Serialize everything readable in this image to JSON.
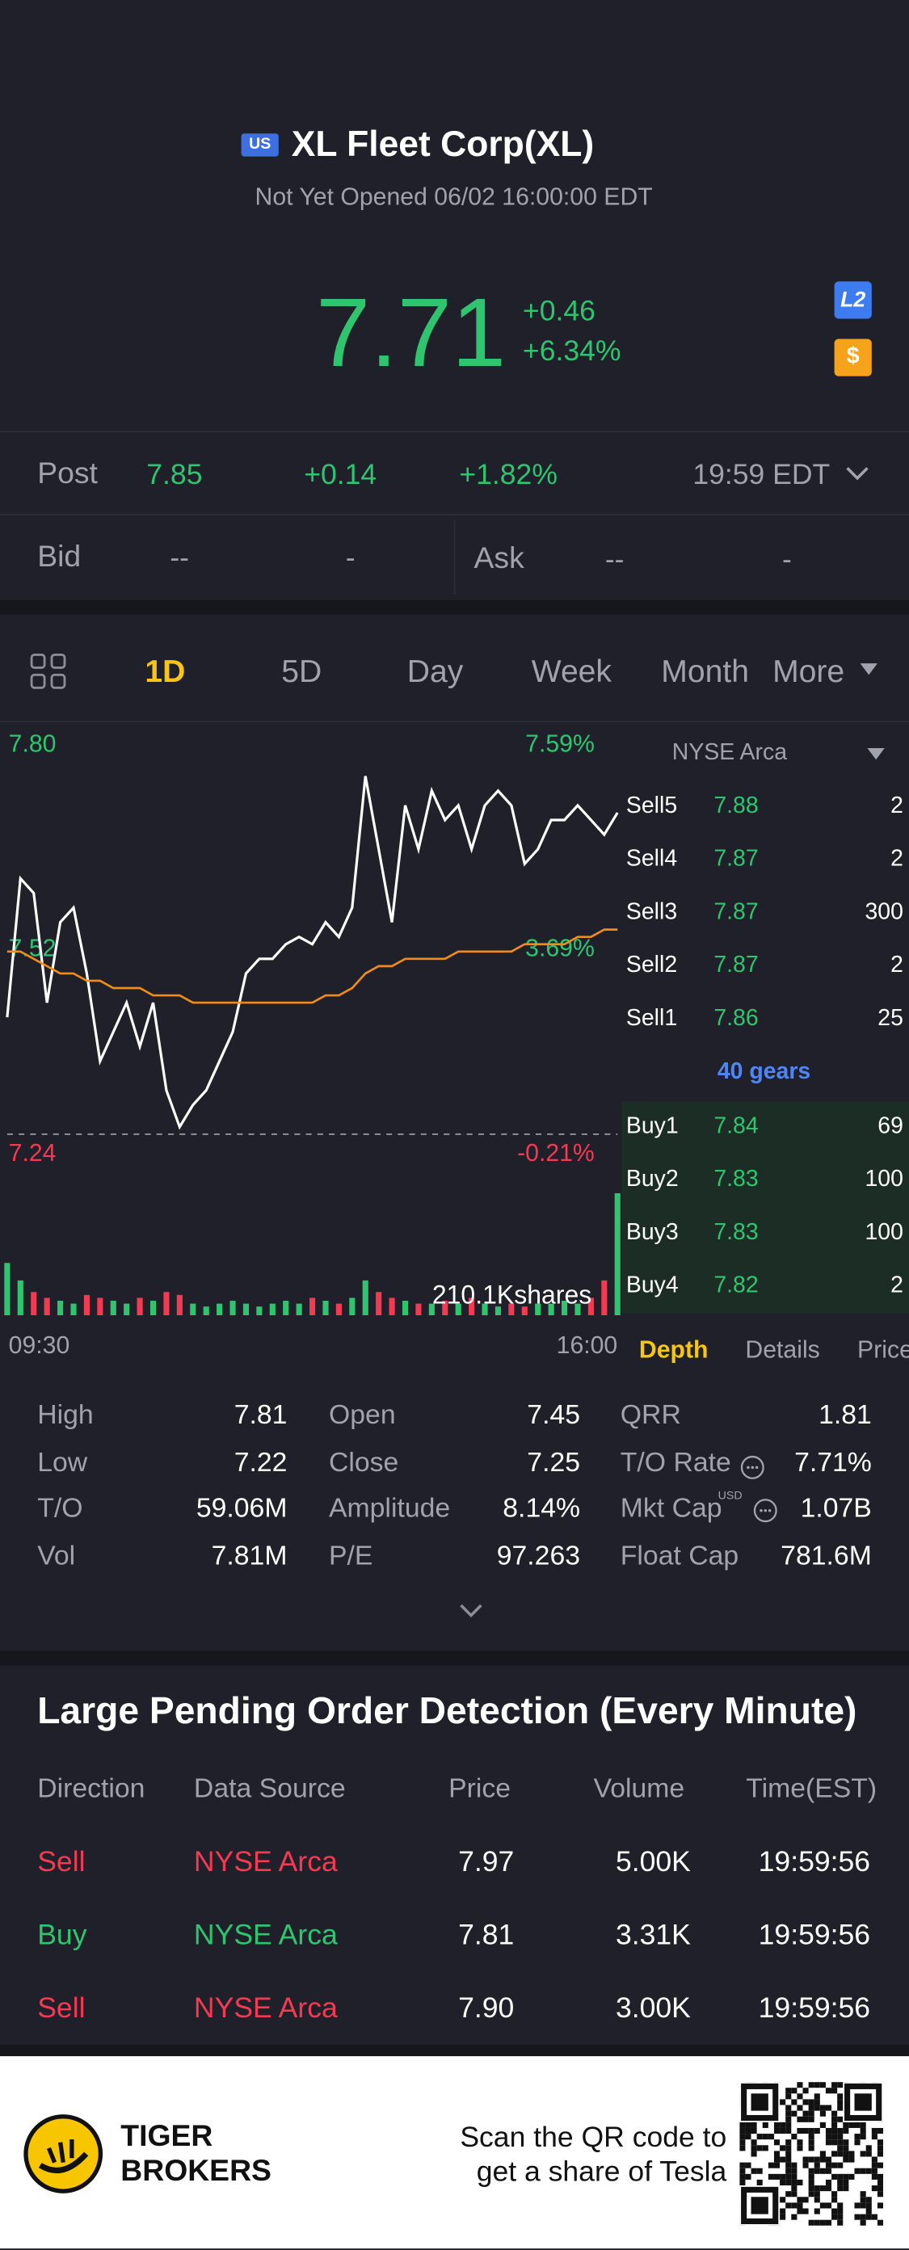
{
  "header": {
    "badge": "US",
    "title": "XL Fleet Corp(XL)",
    "status": "Not Yet Opened 06/02 16:00:00 EDT"
  },
  "quote": {
    "price": "7.71",
    "change": "+0.46",
    "change_pct": "+6.34%",
    "icons": [
      "L2",
      "$"
    ]
  },
  "post": {
    "label": "Post",
    "price": "7.85",
    "change": "+0.14",
    "change_pct": "+1.82%",
    "time": "19:59 EDT"
  },
  "bid_ask": {
    "bid_label": "Bid",
    "bid": "--",
    "bid_size": "-",
    "ask_label": "Ask",
    "ask": "--",
    "ask_size": "-"
  },
  "tabs": [
    "1D",
    "5D",
    "Day",
    "Week",
    "Month",
    "More"
  ],
  "chart_data": {
    "type": "line",
    "ylim": [
      7.24,
      7.8
    ],
    "yticks": [
      {
        "value": 7.8,
        "label": "7.80"
      },
      7.52,
      7.24
    ],
    "y2lim": [
      -0.21,
      7.59
    ],
    "y2ticks": [
      {
        "value": 7.59,
        "label": "7.59%"
      },
      {
        "value": 3.69,
        "label": "3.69%"
      },
      {
        "value": -0.21,
        "label": "-0.21%"
      }
    ],
    "prev_close": 7.25,
    "xlabels": [
      "09:30",
      "16:00"
    ],
    "series": [
      {
        "color": "#ffffff",
        "values": [
          7.41,
          7.6,
          7.58,
          7.43,
          7.54,
          7.56,
          7.47,
          7.35,
          7.39,
          7.43,
          7.37,
          7.43,
          7.31,
          7.26,
          7.29,
          7.31,
          7.35,
          7.39,
          7.47,
          7.49,
          7.49,
          7.51,
          7.52,
          7.51,
          7.54,
          7.52,
          7.56,
          7.74,
          7.64,
          7.54,
          7.7,
          7.64,
          7.72,
          7.68,
          7.7,
          7.64,
          7.7,
          7.72,
          7.7,
          7.62,
          7.64,
          7.68,
          7.68,
          7.7,
          7.68,
          7.66,
          7.69
        ]
      },
      {
        "color": "#f08c1a",
        "values": [
          7.5,
          7.5,
          7.49,
          7.48,
          7.47,
          7.47,
          7.46,
          7.46,
          7.45,
          7.45,
          7.45,
          7.44,
          7.44,
          7.44,
          7.43,
          7.43,
          7.43,
          7.43,
          7.43,
          7.43,
          7.43,
          7.43,
          7.43,
          7.43,
          7.44,
          7.44,
          7.45,
          7.47,
          7.48,
          7.48,
          7.49,
          7.49,
          7.49,
          7.49,
          7.5,
          7.5,
          7.5,
          7.5,
          7.5,
          7.51,
          7.51,
          7.51,
          7.51,
          7.52,
          7.52,
          7.53,
          7.53
        ]
      }
    ],
    "volume": {
      "label": "210.1Kshares",
      "values": [
        90,
        60,
        40,
        30,
        25,
        20,
        35,
        30,
        25,
        20,
        30,
        25,
        40,
        35,
        20,
        15,
        20,
        25,
        20,
        15,
        20,
        25,
        20,
        30,
        25,
        20,
        30,
        60,
        40,
        30,
        25,
        20,
        20,
        25,
        20,
        30,
        20,
        15,
        20,
        15,
        20,
        20,
        25,
        20,
        30,
        60,
        210.1
      ]
    }
  },
  "order_book": {
    "exchange": "NYSE Arca",
    "asks": [
      [
        "Sell5",
        "7.88",
        "2"
      ],
      [
        "Sell4",
        "7.87",
        "2"
      ],
      [
        "Sell3",
        "7.87",
        "300"
      ],
      [
        "Sell2",
        "7.87",
        "2"
      ],
      [
        "Sell1",
        "7.86",
        "25"
      ]
    ],
    "gears": "40 gears",
    "bids": [
      [
        "Buy1",
        "7.84",
        "69"
      ],
      [
        "Buy2",
        "7.83",
        "100"
      ],
      [
        "Buy3",
        "7.83",
        "100"
      ],
      [
        "Buy4",
        "7.82",
        "2"
      ]
    ],
    "tabs": [
      "Depth",
      "Details",
      "Price"
    ]
  },
  "stats": [
    [
      [
        "High",
        "7.81"
      ],
      [
        "Open",
        "7.45"
      ],
      [
        "QRR",
        "1.81"
      ]
    ],
    [
      [
        "Low",
        "7.22"
      ],
      [
        "Close",
        "7.25"
      ],
      [
        "T/O Rate",
        "7.71%"
      ]
    ],
    [
      [
        "T/O",
        "59.06M"
      ],
      [
        "Amplitude",
        "8.14%"
      ],
      [
        "Mkt Cap",
        "1.07B"
      ]
    ],
    [
      [
        "Vol",
        "7.81M"
      ],
      [
        "P/E",
        "97.263"
      ],
      [
        "Float Cap",
        "781.6M"
      ]
    ]
  ],
  "stats_currency": "USD",
  "large_orders": {
    "title": "Large Pending Order Detection (Every Minute)",
    "headers": [
      "Direction",
      "Data Source",
      "Price",
      "Volume",
      "Time(EST)"
    ],
    "rows": [
      [
        "Sell",
        "NYSE Arca",
        "7.97",
        "5.00K",
        "19:59:56"
      ],
      [
        "Buy",
        "NYSE Arca",
        "7.81",
        "3.31K",
        "19:59:56"
      ],
      [
        "Sell",
        "NYSE Arca",
        "7.90",
        "3.00K",
        "19:59:56"
      ]
    ]
  },
  "footer": {
    "brand": [
      "TIGER",
      "BROKERS"
    ],
    "promo": [
      "Scan the QR code to",
      "get a share of Tesla"
    ]
  }
}
